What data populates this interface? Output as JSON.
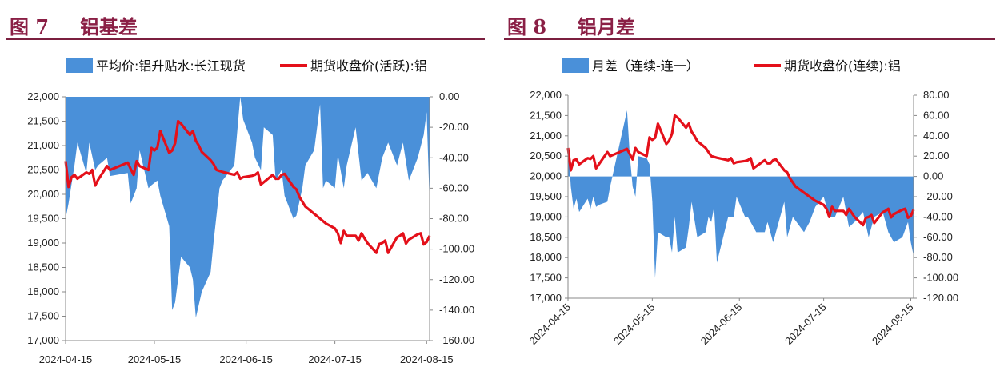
{
  "colors": {
    "title": "#8a1f45",
    "rule": "#7b1f3f",
    "area": "#4a90d9",
    "line": "#e4101a"
  },
  "chart_data": [
    {
      "type": "area+line",
      "figure_number": "图 7",
      "title": "铝基差",
      "legend_position": "top",
      "x_ticks": [
        "2024-04-15",
        "2024-05-15",
        "2024-06-15",
        "2024-07-15",
        "2024-08-15"
      ],
      "x_range": [
        "2024-04-15",
        "2024-08-16"
      ],
      "left_axis": {
        "min": 17000,
        "max": 22000,
        "step": 500,
        "ticks": [
          "22,000",
          "21,500",
          "21,000",
          "20,500",
          "20,000",
          "19,500",
          "19,000",
          "18,500",
          "18,000",
          "17,500",
          "17,000"
        ]
      },
      "right_axis": {
        "min": -160,
        "max": 0,
        "step": 20,
        "ticks": [
          "0.00",
          "-20.00",
          "-40.00",
          "-60.00",
          "-80.00",
          "-100.00",
          "-120.00",
          "-140.00",
          "-160.00"
        ]
      },
      "series": [
        {
          "name": "平均价:铝升贴水:长江现货",
          "type": "area",
          "axis": "right",
          "x": [
            "2024-04-15",
            "2024-04-16",
            "2024-04-18",
            "2024-04-19",
            "2024-04-22",
            "2024-04-23",
            "2024-04-25",
            "2024-04-26",
            "2024-04-29",
            "2024-04-30",
            "2024-05-06",
            "2024-05-07",
            "2024-05-09",
            "2024-05-10",
            "2024-05-13",
            "2024-05-14",
            "2024-05-16",
            "2024-05-17",
            "2024-05-20",
            "2024-05-21",
            "2024-05-22",
            "2024-05-24",
            "2024-05-27",
            "2024-05-28",
            "2024-05-29",
            "2024-05-31",
            "2024-06-03",
            "2024-06-04",
            "2024-06-06",
            "2024-06-07",
            "2024-06-11",
            "2024-06-13",
            "2024-06-14",
            "2024-06-17",
            "2024-06-18",
            "2024-06-20",
            "2024-06-21",
            "2024-06-24",
            "2024-06-25",
            "2024-06-27",
            "2024-06-28",
            "2024-07-01",
            "2024-07-02",
            "2024-07-04",
            "2024-07-05",
            "2024-07-08",
            "2024-07-10",
            "2024-07-11",
            "2024-07-12",
            "2024-07-15",
            "2024-07-16",
            "2024-07-18",
            "2024-07-19",
            "2024-07-22",
            "2024-07-24",
            "2024-07-26",
            "2024-07-29",
            "2024-07-31",
            "2024-08-02",
            "2024-08-05",
            "2024-08-07",
            "2024-08-09",
            "2024-08-12",
            "2024-08-14",
            "2024-08-15",
            "2024-08-16"
          ],
          "values": [
            -80,
            -70,
            -45,
            -30,
            -50,
            -30,
            -48,
            -45,
            -40,
            -52,
            -50,
            -70,
            -60,
            -35,
            -60,
            -58,
            -55,
            -65,
            -85,
            -140,
            -135,
            -105,
            -112,
            -120,
            -145,
            -128,
            -115,
            -95,
            -60,
            -55,
            -45,
            0,
            -15,
            -30,
            -40,
            -48,
            -20,
            -25,
            -55,
            -48,
            -65,
            -80,
            -78,
            -60,
            -45,
            -35,
            -5,
            -60,
            -55,
            -60,
            -38,
            -60,
            -45,
            -20,
            -55,
            -50,
            -60,
            -40,
            -30,
            -45,
            -30,
            -55,
            -40,
            -25,
            -10,
            -70
          ]
        },
        {
          "name": "期货收盘价(活跃):铝",
          "type": "line",
          "axis": "left",
          "x": [
            "2024-04-15",
            "2024-04-16",
            "2024-04-17",
            "2024-04-18",
            "2024-04-19",
            "2024-04-22",
            "2024-04-23",
            "2024-04-24",
            "2024-04-25",
            "2024-04-26",
            "2024-04-29",
            "2024-04-30",
            "2024-05-06",
            "2024-05-07",
            "2024-05-08",
            "2024-05-09",
            "2024-05-10",
            "2024-05-13",
            "2024-05-14",
            "2024-05-15",
            "2024-05-16",
            "2024-05-17",
            "2024-05-20",
            "2024-05-21",
            "2024-05-22",
            "2024-05-23",
            "2024-05-24",
            "2024-05-27",
            "2024-05-28",
            "2024-05-29",
            "2024-05-30",
            "2024-05-31",
            "2024-06-03",
            "2024-06-04",
            "2024-06-05",
            "2024-06-06",
            "2024-06-07",
            "2024-06-11",
            "2024-06-12",
            "2024-06-13",
            "2024-06-14",
            "2024-06-17",
            "2024-06-18",
            "2024-06-19",
            "2024-06-20",
            "2024-06-21",
            "2024-06-24",
            "2024-06-25",
            "2024-06-26",
            "2024-06-27",
            "2024-06-28",
            "2024-07-01",
            "2024-07-02",
            "2024-07-03",
            "2024-07-04",
            "2024-07-05",
            "2024-07-08",
            "2024-07-09",
            "2024-07-10",
            "2024-07-11",
            "2024-07-12",
            "2024-07-15",
            "2024-07-16",
            "2024-07-17",
            "2024-07-18",
            "2024-07-19",
            "2024-07-22",
            "2024-07-23",
            "2024-07-24",
            "2024-07-25",
            "2024-07-26",
            "2024-07-29",
            "2024-07-30",
            "2024-07-31",
            "2024-08-01",
            "2024-08-02",
            "2024-08-05",
            "2024-08-06",
            "2024-08-07",
            "2024-08-08",
            "2024-08-09",
            "2024-08-12",
            "2024-08-13",
            "2024-08-14",
            "2024-08-15",
            "2024-08-16"
          ],
          "values": [
            20680,
            20150,
            20350,
            20400,
            20320,
            20450,
            20420,
            20500,
            20180,
            20300,
            20580,
            20500,
            20650,
            20520,
            20400,
            20680,
            20580,
            20500,
            20950,
            20900,
            20960,
            21300,
            20850,
            20900,
            21050,
            21500,
            21450,
            21220,
            21300,
            21100,
            21000,
            20870,
            20700,
            20620,
            20500,
            20480,
            20460,
            20400,
            20450,
            20320,
            20350,
            20380,
            20400,
            20450,
            20200,
            20250,
            20400,
            20320,
            20320,
            20400,
            20420,
            20150,
            20100,
            19950,
            19850,
            19750,
            19600,
            19550,
            19500,
            19450,
            19400,
            19300,
            19200,
            19000,
            19250,
            19150,
            19150,
            19050,
            19200,
            19100,
            19000,
            18800,
            18980,
            19000,
            19050,
            18800,
            19120,
            19150,
            19200,
            18990,
            19070,
            19180,
            19200,
            18970,
            19020,
            19150
          ]
        }
      ]
    },
    {
      "type": "area+line",
      "figure_number": "图 8",
      "title": "铝月差",
      "legend_position": "top",
      "x_ticks": [
        "2024-04-15",
        "2024-05-15",
        "2024-06-15",
        "2024-07-15",
        "2024-08-15"
      ],
      "x_range": [
        "2024-04-15",
        "2024-08-16"
      ],
      "left_axis": {
        "min": 17000,
        "max": 22000,
        "step": 500,
        "ticks": [
          "22,000",
          "21,500",
          "21,000",
          "20,500",
          "20,000",
          "19,500",
          "19,000",
          "18,500",
          "18,000",
          "17,500",
          "17,000"
        ]
      },
      "right_axis": {
        "min": -120,
        "max": 80,
        "step": 20,
        "ticks": [
          "80.00",
          "60.00",
          "40.00",
          "20.00",
          "0.00",
          "-20.00",
          "-40.00",
          "-60.00",
          "-80.00",
          "-100.00",
          "-120.00"
        ]
      },
      "series": [
        {
          "name": "月差（连续-连一）",
          "type": "area",
          "axis": "right",
          "x": [
            "2024-04-15",
            "2024-04-16",
            "2024-04-17",
            "2024-04-18",
            "2024-04-19",
            "2024-04-22",
            "2024-04-23",
            "2024-04-24",
            "2024-04-25",
            "2024-04-26",
            "2024-04-29",
            "2024-04-30",
            "2024-05-06",
            "2024-05-07",
            "2024-05-08",
            "2024-05-09",
            "2024-05-10",
            "2024-05-13",
            "2024-05-14",
            "2024-05-15",
            "2024-05-16",
            "2024-05-17",
            "2024-05-20",
            "2024-05-21",
            "2024-05-22",
            "2024-05-23",
            "2024-05-24",
            "2024-05-27",
            "2024-05-28",
            "2024-05-29",
            "2024-05-31",
            "2024-06-03",
            "2024-06-04",
            "2024-06-05",
            "2024-06-06",
            "2024-06-07",
            "2024-06-11",
            "2024-06-13",
            "2024-06-14",
            "2024-06-17",
            "2024-06-18",
            "2024-06-19",
            "2024-06-21",
            "2024-06-24",
            "2024-06-25",
            "2024-06-27",
            "2024-07-01",
            "2024-07-02",
            "2024-07-04",
            "2024-07-08",
            "2024-07-10",
            "2024-07-12",
            "2024-07-15",
            "2024-07-17",
            "2024-07-19",
            "2024-07-22",
            "2024-07-24",
            "2024-07-26",
            "2024-07-29",
            "2024-07-31",
            "2024-08-02",
            "2024-08-05",
            "2024-08-07",
            "2024-08-09",
            "2024-08-12",
            "2024-08-14",
            "2024-08-15",
            "2024-08-16"
          ],
          "values": [
            35,
            -10,
            -32,
            -22,
            -35,
            -22,
            -32,
            -20,
            -30,
            -28,
            -25,
            -10,
            65,
            20,
            -10,
            -20,
            20,
            18,
            12,
            -25,
            -100,
            -55,
            -60,
            -60,
            -75,
            -40,
            -75,
            -70,
            -50,
            -25,
            -60,
            -55,
            -40,
            -45,
            -30,
            -85,
            -40,
            -40,
            -20,
            -40,
            -40,
            -45,
            -55,
            -55,
            -45,
            -65,
            -25,
            -60,
            -40,
            -55,
            -45,
            -30,
            -20,
            -40,
            -40,
            -20,
            -50,
            -45,
            -35,
            -60,
            -40,
            -35,
            -55,
            -65,
            -60,
            -45,
            -65,
            -78
          ]
        },
        {
          "name": "期货收盘价(连续):铝",
          "type": "line",
          "axis": "left",
          "x": [
            "2024-04-15",
            "2024-04-16",
            "2024-04-17",
            "2024-04-18",
            "2024-04-19",
            "2024-04-22",
            "2024-04-23",
            "2024-04-24",
            "2024-04-25",
            "2024-04-26",
            "2024-04-29",
            "2024-04-30",
            "2024-05-06",
            "2024-05-07",
            "2024-05-08",
            "2024-05-09",
            "2024-05-10",
            "2024-05-13",
            "2024-05-14",
            "2024-05-15",
            "2024-05-16",
            "2024-05-17",
            "2024-05-20",
            "2024-05-21",
            "2024-05-22",
            "2024-05-23",
            "2024-05-24",
            "2024-05-27",
            "2024-05-28",
            "2024-05-29",
            "2024-05-30",
            "2024-05-31",
            "2024-06-03",
            "2024-06-04",
            "2024-06-05",
            "2024-06-06",
            "2024-06-07",
            "2024-06-11",
            "2024-06-12",
            "2024-06-13",
            "2024-06-14",
            "2024-06-17",
            "2024-06-18",
            "2024-06-19",
            "2024-06-20",
            "2024-06-21",
            "2024-06-24",
            "2024-06-25",
            "2024-06-26",
            "2024-06-27",
            "2024-06-28",
            "2024-07-01",
            "2024-07-02",
            "2024-07-03",
            "2024-07-04",
            "2024-07-05",
            "2024-07-08",
            "2024-07-09",
            "2024-07-10",
            "2024-07-11",
            "2024-07-12",
            "2024-07-15",
            "2024-07-16",
            "2024-07-17",
            "2024-07-18",
            "2024-07-19",
            "2024-07-22",
            "2024-07-23",
            "2024-07-24",
            "2024-07-25",
            "2024-07-26",
            "2024-07-29",
            "2024-07-30",
            "2024-07-31",
            "2024-08-01",
            "2024-08-02",
            "2024-08-05",
            "2024-08-06",
            "2024-08-07",
            "2024-08-08",
            "2024-08-09",
            "2024-08-12",
            "2024-08-13",
            "2024-08-14",
            "2024-08-15",
            "2024-08-16"
          ],
          "values": [
            20700,
            20150,
            20400,
            20420,
            20300,
            20450,
            20430,
            20500,
            20200,
            20300,
            20600,
            20500,
            20680,
            20550,
            20420,
            20700,
            20600,
            20500,
            20960,
            20900,
            20950,
            21300,
            20800,
            20880,
            21050,
            21500,
            21450,
            21200,
            21300,
            21100,
            21000,
            20870,
            20700,
            20600,
            20500,
            20480,
            20460,
            20400,
            20450,
            20320,
            20350,
            20380,
            20400,
            20450,
            20200,
            20250,
            20400,
            20320,
            20320,
            20400,
            20420,
            20150,
            20100,
            19950,
            19850,
            19750,
            19600,
            19550,
            19500,
            19450,
            19400,
            19300,
            19200,
            19000,
            19250,
            19150,
            19150,
            19050,
            19200,
            19100,
            19000,
            18800,
            18980,
            19000,
            19050,
            18850,
            19120,
            19150,
            19200,
            18990,
            19070,
            19180,
            19200,
            18980,
            19020,
            19180
          ]
        }
      ]
    }
  ]
}
